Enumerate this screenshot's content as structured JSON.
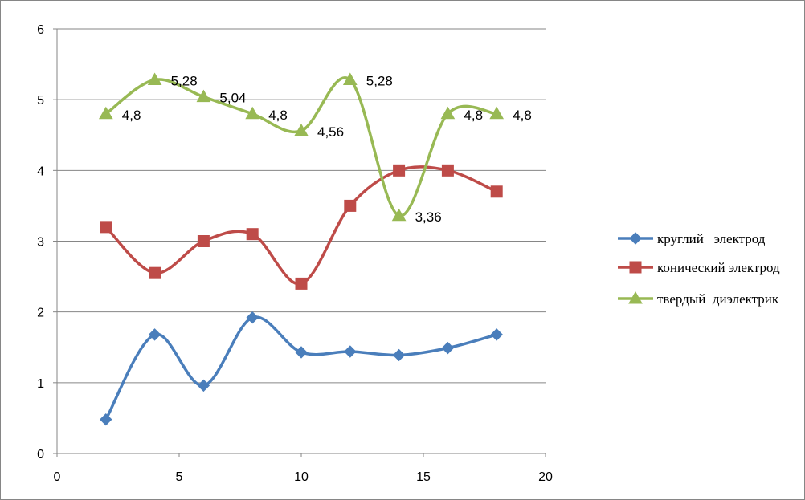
{
  "chart_data": {
    "type": "line",
    "title": "",
    "xlabel": "",
    "ylabel": "",
    "xlim": [
      0,
      20
    ],
    "ylim": [
      0,
      6
    ],
    "x_ticks": [
      0,
      5,
      10,
      15,
      20
    ],
    "y_ticks": [
      0,
      1,
      2,
      3,
      4,
      5,
      6
    ],
    "grid": "horizontal",
    "legend_position": "right",
    "smooth": true,
    "series": [
      {
        "name": "круглий   электрод",
        "color": "#4a7ebb",
        "marker": "diamond",
        "x": [
          2,
          4,
          6,
          8,
          10,
          12,
          14,
          16,
          18
        ],
        "y": [
          0.48,
          1.68,
          0.96,
          1.92,
          1.43,
          1.44,
          1.39,
          1.49,
          1.68
        ],
        "data_labels": []
      },
      {
        "name": "конический электрод",
        "color": "#be4b48",
        "marker": "square",
        "x": [
          2,
          4,
          6,
          8,
          10,
          12,
          14,
          16,
          18
        ],
        "y": [
          3.2,
          2.55,
          3.0,
          3.1,
          2.4,
          3.5,
          4.0,
          4.0,
          3.7
        ],
        "data_labels": []
      },
      {
        "name": "твердый  диэлектрик",
        "color": "#98b954",
        "marker": "triangle",
        "x": [
          2,
          4,
          6,
          8,
          10,
          12,
          14,
          16,
          18
        ],
        "y": [
          4.8,
          5.28,
          5.04,
          4.8,
          4.56,
          5.28,
          3.36,
          4.8,
          4.8
        ],
        "data_labels": [
          "4,8",
          "5,28",
          "5,04",
          "4,8",
          "4,56",
          "5,28",
          "3,36",
          "4,8",
          "4,8"
        ]
      }
    ]
  }
}
